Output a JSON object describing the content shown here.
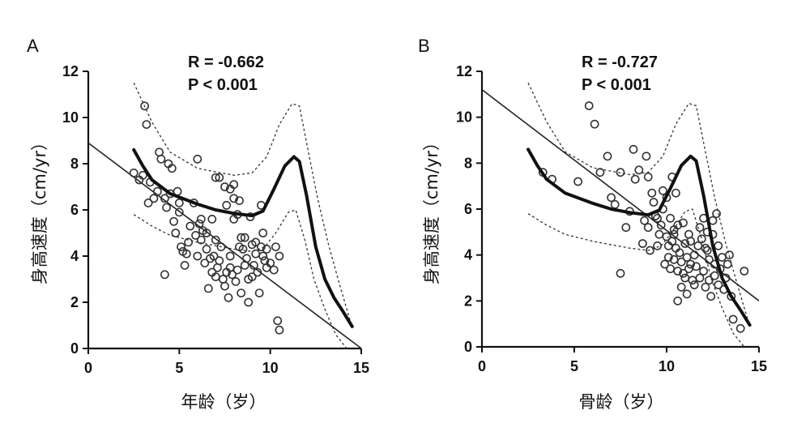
{
  "chart_data": [
    {
      "panel": "A",
      "type": "scatter",
      "stats": {
        "r": "R = -0.662",
        "p": "P < 0.001"
      },
      "xlabel": "年龄（岁）",
      "ylabel": "身高速度（cm/yr）",
      "xlim": [
        0,
        15
      ],
      "ylim": [
        0,
        12
      ],
      "xticks": [
        0,
        5,
        10,
        15
      ],
      "yticks": [
        0,
        2,
        4,
        6,
        8,
        10,
        12
      ],
      "regression": {
        "intercept": 8.9,
        "slope": -0.593
      },
      "reference_curve": [
        [
          2.5,
          8.6
        ],
        [
          3.0,
          7.9
        ],
        [
          3.5,
          7.3
        ],
        [
          4.5,
          6.7
        ],
        [
          6,
          6.25
        ],
        [
          7,
          6.0
        ],
        [
          8,
          5.85
        ],
        [
          9,
          5.75
        ],
        [
          9.6,
          5.95
        ],
        [
          10.2,
          6.9
        ],
        [
          10.8,
          7.9
        ],
        [
          11.3,
          8.3
        ],
        [
          11.6,
          8.1
        ],
        [
          12,
          6.6
        ],
        [
          12.5,
          4.4
        ],
        [
          13,
          3.0
        ],
        [
          13.5,
          2.2
        ],
        [
          14,
          1.6
        ],
        [
          14.5,
          0.95
        ]
      ],
      "ci_upper": [
        [
          2.5,
          11.5
        ],
        [
          3.5,
          9.8
        ],
        [
          4.5,
          8.5
        ],
        [
          6,
          7.8
        ],
        [
          8,
          7.5
        ],
        [
          9,
          7.6
        ],
        [
          9.8,
          8.3
        ],
        [
          10.5,
          9.7
        ],
        [
          11.2,
          10.6
        ],
        [
          11.6,
          10.5
        ],
        [
          12.1,
          8.5
        ],
        [
          12.6,
          6.5
        ],
        [
          13.2,
          4.5
        ],
        [
          13.8,
          2.8
        ],
        [
          14.5,
          0.9
        ]
      ],
      "ci_lower": [
        [
          2.5,
          5.8
        ],
        [
          3.5,
          5.3
        ],
        [
          4.5,
          4.9
        ],
        [
          6,
          4.6
        ],
        [
          8,
          4.3
        ],
        [
          9,
          4.2
        ],
        [
          9.7,
          4.4
        ],
        [
          10.3,
          5.0
        ],
        [
          11,
          5.9
        ],
        [
          11.4,
          6.0
        ],
        [
          11.9,
          4.7
        ],
        [
          12.4,
          3.0
        ],
        [
          13,
          1.7
        ],
        [
          13.6,
          0.6
        ],
        [
          14.2,
          0.0
        ]
      ],
      "points": [
        [
          2.5,
          7.6
        ],
        [
          2.8,
          7.3
        ],
        [
          3.0,
          7.5
        ],
        [
          3.1,
          10.5
        ],
        [
          3.2,
          9.7
        ],
        [
          3.3,
          6.3
        ],
        [
          3.4,
          7.2
        ],
        [
          3.6,
          6.5
        ],
        [
          3.8,
          6.8
        ],
        [
          3.9,
          8.5
        ],
        [
          4.0,
          8.2
        ],
        [
          4.2,
          3.2
        ],
        [
          4.2,
          6.5
        ],
        [
          4.3,
          6.1
        ],
        [
          4.4,
          8.0
        ],
        [
          4.5,
          6.7
        ],
        [
          4.6,
          7.8
        ],
        [
          4.7,
          5.5
        ],
        [
          4.8,
          5.0
        ],
        [
          5.0,
          5.9
        ],
        [
          5.1,
          4.4
        ],
        [
          5.2,
          4.2
        ],
        [
          5.3,
          3.6
        ],
        [
          5.4,
          4.1
        ],
        [
          5.5,
          4.6
        ],
        [
          5.6,
          5.3
        ],
        [
          5.8,
          6.3
        ],
        [
          5.9,
          4.9
        ],
        [
          6.0,
          8.2
        ],
        [
          6.1,
          5.4
        ],
        [
          6.2,
          5.6
        ],
        [
          6.3,
          5.1
        ],
        [
          6.4,
          3.7
        ],
        [
          6.5,
          4.3
        ],
        [
          6.6,
          2.6
        ],
        [
          6.7,
          3.9
        ],
        [
          6.8,
          3.3
        ],
        [
          6.9,
          4.0
        ],
        [
          7.0,
          7.4
        ],
        [
          7.0,
          3.1
        ],
        [
          7.1,
          3.5
        ],
        [
          7.2,
          3.8
        ],
        [
          7.3,
          4.4
        ],
        [
          7.4,
          3.0
        ],
        [
          7.5,
          2.7
        ],
        [
          7.6,
          3.3
        ],
        [
          7.7,
          2.2
        ],
        [
          7.8,
          4.0
        ],
        [
          7.8,
          3.5
        ],
        [
          7.9,
          3.2
        ],
        [
          8.0,
          5.6
        ],
        [
          8.1,
          2.9
        ],
        [
          8.2,
          3.4
        ],
        [
          8.3,
          4.4
        ],
        [
          8.4,
          2.4
        ],
        [
          8.5,
          4.3
        ],
        [
          8.6,
          4.8
        ],
        [
          8.7,
          3.9
        ],
        [
          8.8,
          2.0
        ],
        [
          8.9,
          5.7
        ],
        [
          8.2,
          5.8
        ],
        [
          8.0,
          6.5
        ],
        [
          8.3,
          6.4
        ],
        [
          8.8,
          3.0
        ],
        [
          9.0,
          4.5
        ],
        [
          9.1,
          3.6
        ],
        [
          9.2,
          4.1
        ],
        [
          9.3,
          3.3
        ],
        [
          9.4,
          2.4
        ],
        [
          9.5,
          4.4
        ],
        [
          9.5,
          6.2
        ],
        [
          9.6,
          4.0
        ],
        [
          9.7,
          3.8
        ],
        [
          9.8,
          3.5
        ],
        [
          10.0,
          3.7
        ],
        [
          10.2,
          3.4
        ],
        [
          10.3,
          4.4
        ],
        [
          10.4,
          1.2
        ],
        [
          10.5,
          0.8
        ],
        [
          10.5,
          4.0
        ],
        [
          7.5,
          7.0
        ],
        [
          7.2,
          7.4
        ],
        [
          7.8,
          6.9
        ],
        [
          7.6,
          6.2
        ],
        [
          8.0,
          7.1
        ],
        [
          6.5,
          5.0
        ],
        [
          6.8,
          5.6
        ],
        [
          7.0,
          4.7
        ],
        [
          8.6,
          3.6
        ],
        [
          9.0,
          3.1
        ],
        [
          9.2,
          4.6
        ],
        [
          8.4,
          4.8
        ],
        [
          9.6,
          5.0
        ],
        [
          5.0,
          6.3
        ],
        [
          4.9,
          6.8
        ],
        [
          6.2,
          4.7
        ],
        [
          6.0,
          4.0
        ],
        [
          9.8,
          4.3
        ]
      ]
    },
    {
      "panel": "B",
      "type": "scatter",
      "stats": {
        "r": "R = -0.727",
        "p": "P < 0.001"
      },
      "xlabel": "骨龄（岁）",
      "ylabel": "身高速度（cm/yr）",
      "xlim": [
        0,
        15
      ],
      "ylim": [
        0,
        12
      ],
      "xticks": [
        0,
        5,
        10,
        15
      ],
      "yticks": [
        0,
        2,
        4,
        6,
        8,
        10,
        12
      ],
      "regression": {
        "intercept": 11.2,
        "slope": -0.613
      },
      "reference_curve": [
        [
          2.5,
          8.6
        ],
        [
          3.0,
          7.9
        ],
        [
          3.5,
          7.3
        ],
        [
          4.5,
          6.7
        ],
        [
          6,
          6.25
        ],
        [
          7,
          6.0
        ],
        [
          8,
          5.85
        ],
        [
          9,
          5.75
        ],
        [
          9.6,
          5.95
        ],
        [
          10.2,
          6.9
        ],
        [
          10.8,
          7.9
        ],
        [
          11.3,
          8.3
        ],
        [
          11.6,
          8.1
        ],
        [
          12,
          6.6
        ],
        [
          12.5,
          4.4
        ],
        [
          13,
          3.0
        ],
        [
          13.5,
          2.2
        ],
        [
          14,
          1.6
        ],
        [
          14.5,
          0.95
        ]
      ],
      "ci_upper": [
        [
          2.5,
          11.5
        ],
        [
          3.5,
          9.8
        ],
        [
          4.5,
          8.5
        ],
        [
          6,
          7.8
        ],
        [
          8,
          7.5
        ],
        [
          9,
          7.6
        ],
        [
          9.8,
          8.3
        ],
        [
          10.5,
          9.7
        ],
        [
          11.2,
          10.6
        ],
        [
          11.6,
          10.5
        ],
        [
          12.1,
          8.5
        ],
        [
          12.6,
          6.5
        ],
        [
          13.2,
          4.5
        ],
        [
          13.8,
          2.8
        ],
        [
          14.5,
          0.9
        ]
      ],
      "ci_lower": [
        [
          2.5,
          5.8
        ],
        [
          3.5,
          5.3
        ],
        [
          4.5,
          4.9
        ],
        [
          6,
          4.6
        ],
        [
          8,
          4.3
        ],
        [
          9,
          4.2
        ],
        [
          9.7,
          4.4
        ],
        [
          10.3,
          5.0
        ],
        [
          11,
          5.9
        ],
        [
          11.4,
          6.0
        ],
        [
          11.9,
          4.7
        ],
        [
          12.4,
          3.0
        ],
        [
          13,
          1.7
        ],
        [
          13.6,
          0.6
        ],
        [
          14.2,
          0.0
        ]
      ],
      "points": [
        [
          3.3,
          7.6
        ],
        [
          3.8,
          7.3
        ],
        [
          5.2,
          7.2
        ],
        [
          5.8,
          10.5
        ],
        [
          6.1,
          9.7
        ],
        [
          6.4,
          7.6
        ],
        [
          6.8,
          8.3
        ],
        [
          7.0,
          6.5
        ],
        [
          7.2,
          6.2
        ],
        [
          7.5,
          7.6
        ],
        [
          7.5,
          3.2
        ],
        [
          7.8,
          5.2
        ],
        [
          8.0,
          5.9
        ],
        [
          8.2,
          8.6
        ],
        [
          8.3,
          7.3
        ],
        [
          8.5,
          7.7
        ],
        [
          8.7,
          4.5
        ],
        [
          8.8,
          5.5
        ],
        [
          8.9,
          8.3
        ],
        [
          9.0,
          7.4
        ],
        [
          9.0,
          5.2
        ],
        [
          9.1,
          4.2
        ],
        [
          9.2,
          6.7
        ],
        [
          9.3,
          6.3
        ],
        [
          9.4,
          5.7
        ],
        [
          9.5,
          5.6
        ],
        [
          9.6,
          4.9
        ],
        [
          9.7,
          5.3
        ],
        [
          9.8,
          6.8
        ],
        [
          9.9,
          3.6
        ],
        [
          10.0,
          4.8
        ],
        [
          10.0,
          6.5
        ],
        [
          10.1,
          4.4
        ],
        [
          10.2,
          3.4
        ],
        [
          10.3,
          7.4
        ],
        [
          10.3,
          4.6
        ],
        [
          10.4,
          5.1
        ],
        [
          10.4,
          3.8
        ],
        [
          10.5,
          4.3
        ],
        [
          10.5,
          6.7
        ],
        [
          10.6,
          3.3
        ],
        [
          10.6,
          2.0
        ],
        [
          10.7,
          4.1
        ],
        [
          10.8,
          3.7
        ],
        [
          10.8,
          2.6
        ],
        [
          10.9,
          3.2
        ],
        [
          11.0,
          4.5
        ],
        [
          11.0,
          3.0
        ],
        [
          11.1,
          3.9
        ],
        [
          11.2,
          3.4
        ],
        [
          11.3,
          4.6
        ],
        [
          11.3,
          3.6
        ],
        [
          11.4,
          2.9
        ],
        [
          11.5,
          4.0
        ],
        [
          11.6,
          3.5
        ],
        [
          11.7,
          4.4
        ],
        [
          11.8,
          3.0
        ],
        [
          11.9,
          4.7
        ],
        [
          12.0,
          3.3
        ],
        [
          12.0,
          5.6
        ],
        [
          12.1,
          2.6
        ],
        [
          12.2,
          4.2
        ],
        [
          12.3,
          3.8
        ],
        [
          12.4,
          2.2
        ],
        [
          12.5,
          4.9
        ],
        [
          12.5,
          5.5
        ],
        [
          12.6,
          3.1
        ],
        [
          12.7,
          5.8
        ],
        [
          12.8,
          2.7
        ],
        [
          12.9,
          3.4
        ],
        [
          13.0,
          3.9
        ],
        [
          13.1,
          2.5
        ],
        [
          13.3,
          3.6
        ],
        [
          13.5,
          2.2
        ],
        [
          13.6,
          1.2
        ],
        [
          14.0,
          0.8
        ],
        [
          14.2,
          3.3
        ],
        [
          10.2,
          5.6
        ],
        [
          9.8,
          6.0
        ],
        [
          10.6,
          5.3
        ],
        [
          11.2,
          4.9
        ],
        [
          10.9,
          5.4
        ],
        [
          12.2,
          5.0
        ],
        [
          11.5,
          2.7
        ],
        [
          12.8,
          4.4
        ],
        [
          13.2,
          3.0
        ],
        [
          9.5,
          4.4
        ],
        [
          10.1,
          3.9
        ],
        [
          11.8,
          5.2
        ],
        [
          12.6,
          3.6
        ],
        [
          12.3,
          2.9
        ],
        [
          11.1,
          2.3
        ],
        [
          10.4,
          4.9
        ],
        [
          13.4,
          4.0
        ],
        [
          12.1,
          4.3
        ]
      ]
    }
  ]
}
